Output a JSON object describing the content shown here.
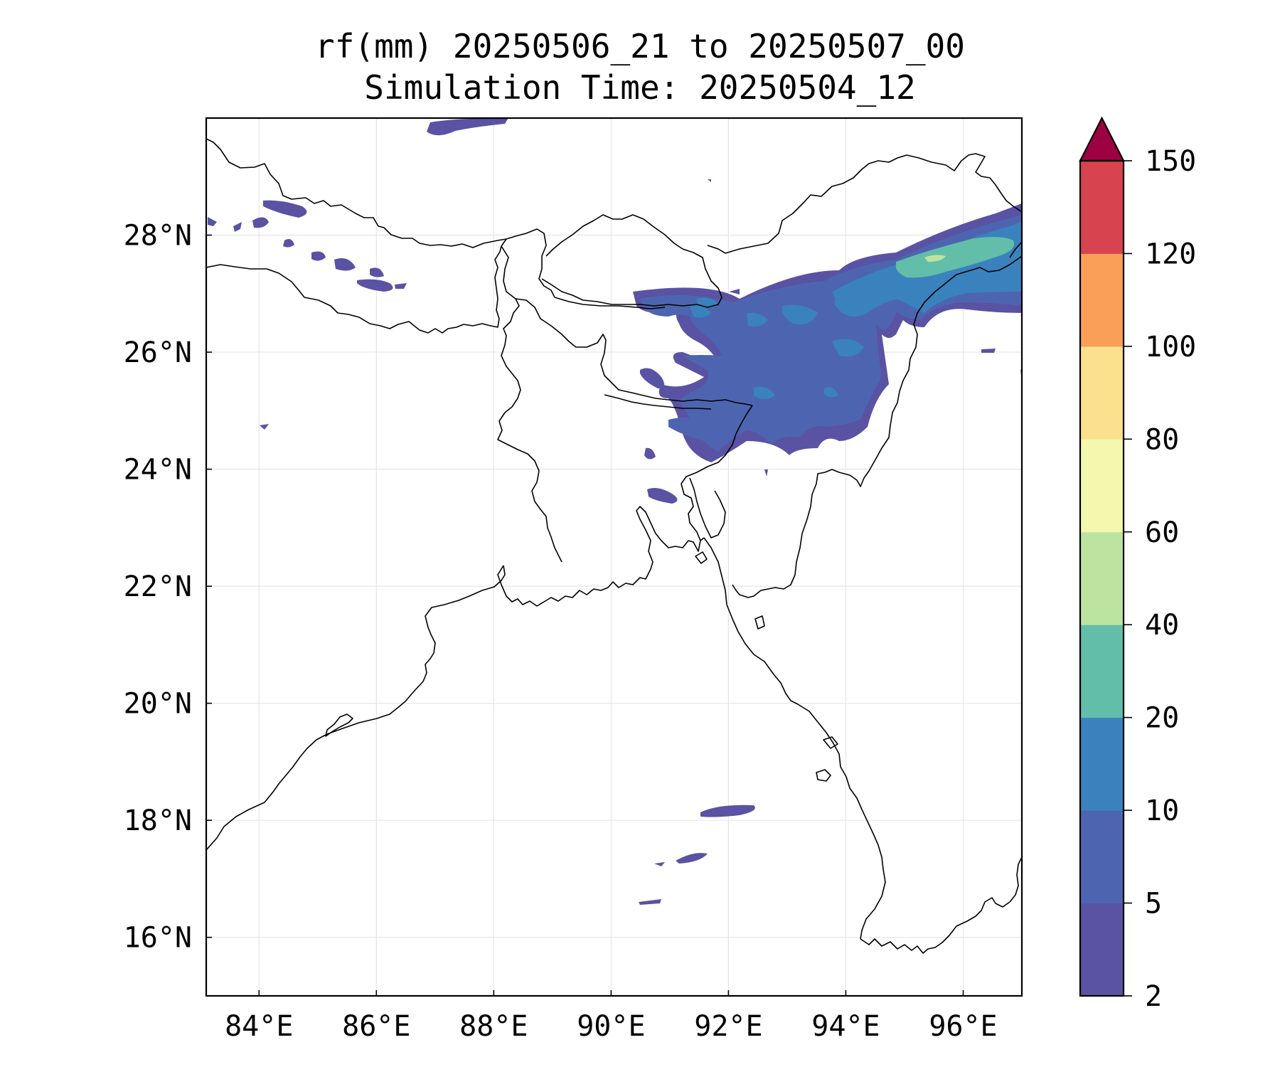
{
  "title": "rf(mm) 20250506_21 to 20250507_00",
  "subtitle": "Simulation Time: 20250504_12",
  "map": {
    "lon_range": [
      83.1,
      97.0
    ],
    "lat_range": [
      15.0,
      30.0
    ],
    "lon_ticks": [
      "84°E",
      "86°E",
      "88°E",
      "90°E",
      "92°E",
      "94°E",
      "96°E"
    ],
    "lat_ticks": [
      "16°N",
      "18°N",
      "20°N",
      "22°N",
      "24°N",
      "26°N",
      "28°N"
    ],
    "grid": true,
    "colors": {
      "land_outline": "#000000",
      "rain_2_5": "#5a52a3",
      "rain_5_10": "#4d65b0",
      "rain_10_20": "#3a82bd",
      "rain_20_40": "#62bea9",
      "rain_40_60": "#bde3a0"
    }
  },
  "colorbar": {
    "levels": [
      "2",
      "5",
      "10",
      "20",
      "40",
      "60",
      "80",
      "100",
      "120",
      "150"
    ],
    "colors": [
      "#5a52a3",
      "#4d65b0",
      "#3a82bd",
      "#62bea9",
      "#bde3a0",
      "#f4f8ae",
      "#fbe08e",
      "#f99f58",
      "#d7434e"
    ],
    "extend_color": "#9e0142"
  }
}
